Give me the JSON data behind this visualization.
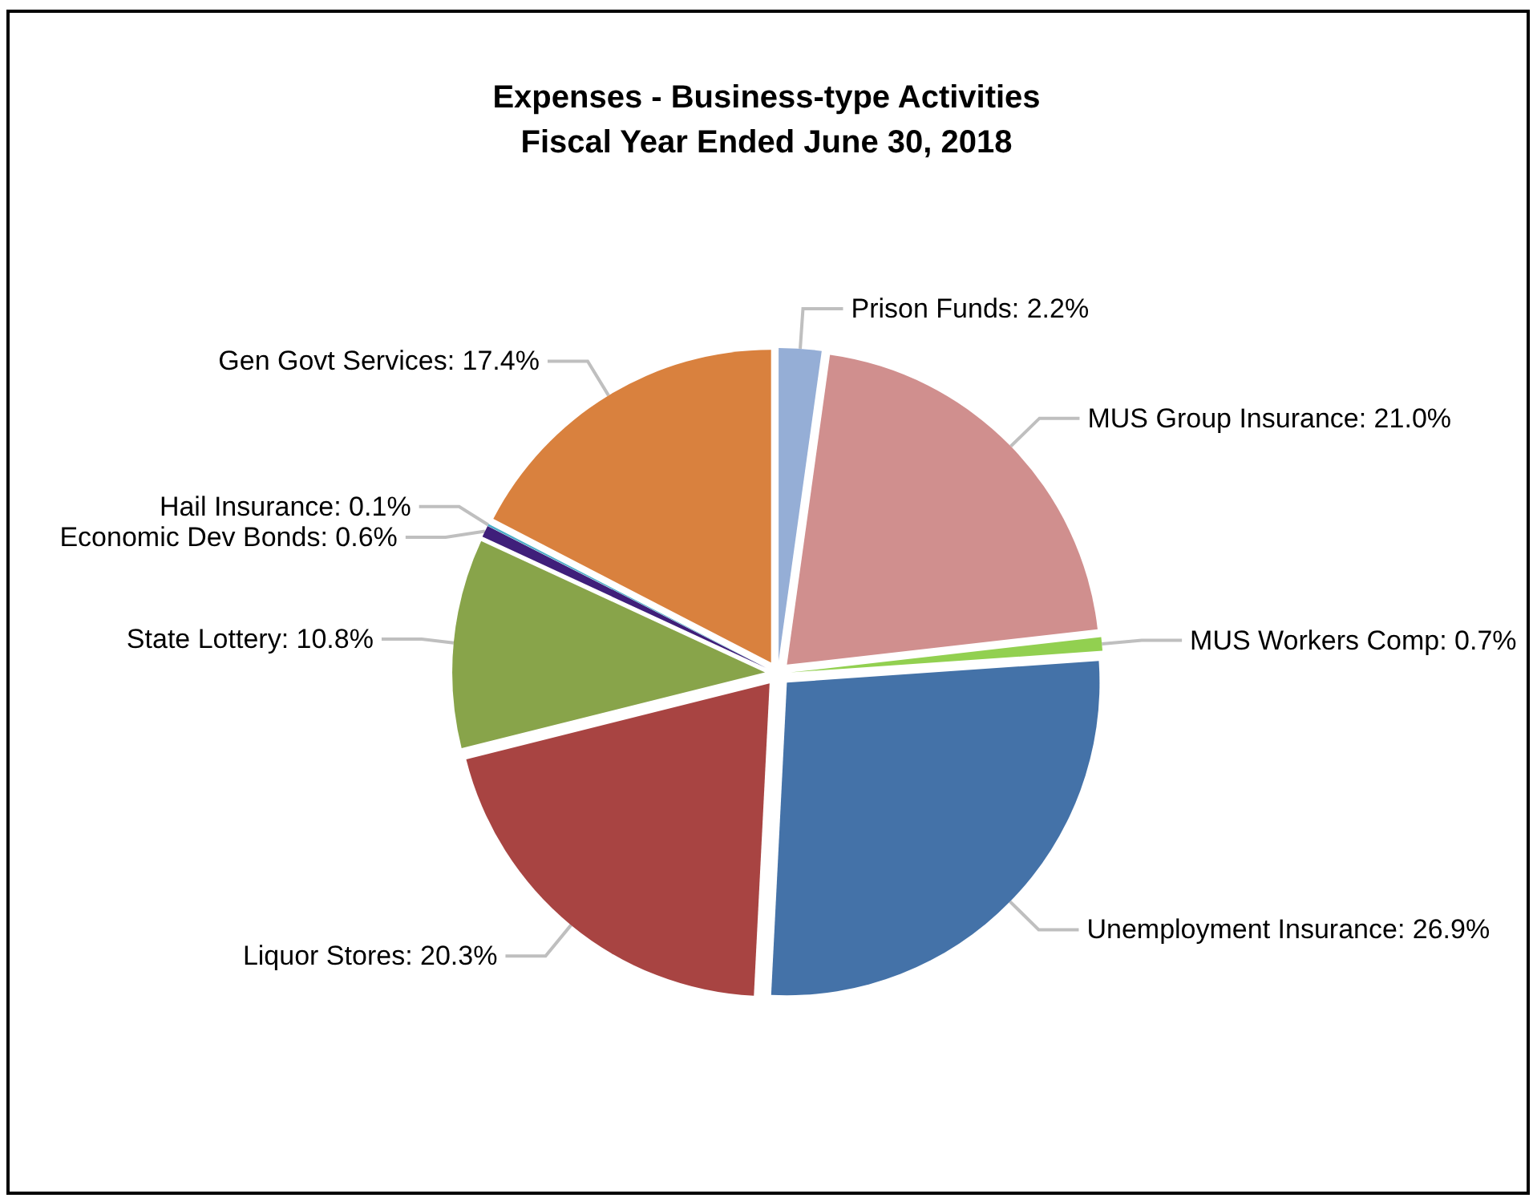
{
  "chart_data": {
    "type": "pie",
    "title": "Expenses - Business-type Activities\nFiscal Year Ended June 30, 2018",
    "categories": [
      "Prison Funds",
      "MUS Group Insurance",
      "MUS Workers Comp",
      "Unemployment Insurance",
      "Liquor Stores",
      "State Lottery",
      "Economic Dev Bonds",
      "Hail Insurance",
      "Gen Govt Services"
    ],
    "values": [
      2.2,
      21.0,
      0.7,
      26.9,
      20.3,
      10.8,
      0.6,
      0.1,
      17.4
    ],
    "value_labels": [
      "2.2%",
      "21.0%",
      "0.7%",
      "26.9%",
      "20.3%",
      "10.8%",
      "0.6%",
      "0.1%",
      "17.4%"
    ],
    "colors": [
      "#95aed6",
      "#d08f8e",
      "#92d050",
      "#4472a8",
      "#a84442",
      "#88a44a",
      "#3f1f7a",
      "#4bacc6",
      "#d9813e"
    ],
    "legend": false
  }
}
